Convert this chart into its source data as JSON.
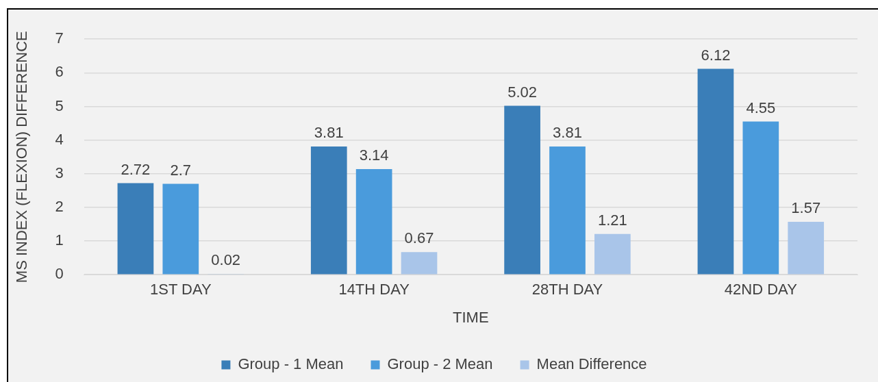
{
  "chart_data": {
    "type": "bar",
    "xlabel": "TIME",
    "ylabel": "MS INDEX (FLEXION) DIFFERENCE",
    "categories": [
      "1ST DAY",
      "14TH DAY",
      "28TH DAY",
      "42ND DAY"
    ],
    "series": [
      {
        "name": "Group - 1 Mean",
        "color": "#3a7eb8",
        "values": [
          2.72,
          3.81,
          5.02,
          6.12
        ]
      },
      {
        "name": "Group - 2 Mean",
        "color": "#4a9bdc",
        "values": [
          2.7,
          3.14,
          3.81,
          4.55
        ]
      },
      {
        "name": "Mean Difference",
        "color": "#a9c5e9",
        "values": [
          0.02,
          0.67,
          1.21,
          1.57
        ]
      }
    ],
    "ylim": [
      0,
      7
    ],
    "yticks": [
      0,
      1,
      2,
      3,
      4,
      5,
      6,
      7
    ],
    "grid": "y",
    "legend": "bottom",
    "data_labels": true
  }
}
